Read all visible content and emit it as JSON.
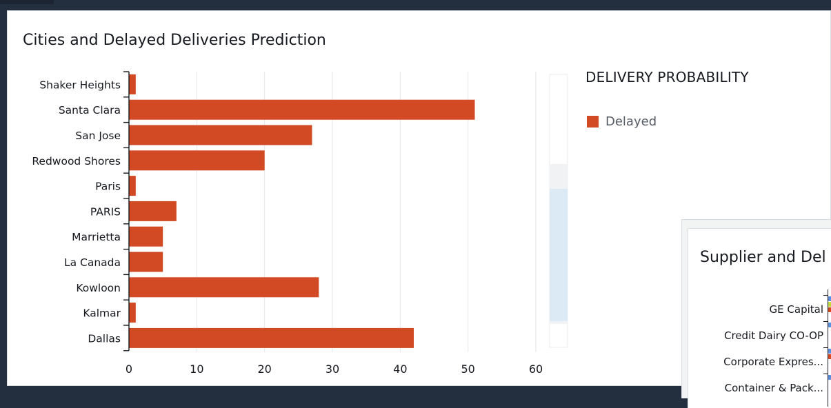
{
  "panel": {
    "title": "Cities and Delayed Deliveries Prediction"
  },
  "legend": {
    "title": "DELIVERY PROBABILITY",
    "items": [
      {
        "label": "Delayed",
        "color": "#d14a24"
      }
    ]
  },
  "chart_data": {
    "type": "bar",
    "orientation": "horizontal",
    "title": "Cities and Delayed Deliveries Prediction",
    "categories": [
      "Shaker Heights",
      "Santa Clara",
      "San Jose",
      "Redwood Shores",
      "Paris",
      "PARIS",
      "Marrietta",
      "La Canada",
      "Kowloon",
      "Kalmar",
      "Dallas"
    ],
    "series": [
      {
        "name": "Delayed",
        "color": "#d14a24",
        "values": [
          1,
          51,
          27,
          20,
          1,
          7,
          5,
          5,
          28,
          1,
          42
        ]
      }
    ],
    "xticks": [
      0,
      10,
      20,
      30,
      40,
      50,
      60
    ],
    "xlim": [
      0,
      60
    ],
    "grid": true,
    "legend_position": "right"
  },
  "panel2": {
    "title": "Supplier and Del",
    "suppliers": [
      {
        "label": "GE Capital",
        "bars": [
          {
            "color": "#5b8fd9"
          },
          {
            "color": "#c4d93a"
          },
          {
            "color": "#d14a24"
          }
        ]
      },
      {
        "label": "Credit Dairy CO-OP",
        "bars": [
          {
            "color": "#5b8fd9"
          }
        ]
      },
      {
        "label": "Corporate Expres...",
        "bars": [
          {
            "color": "#5b8fd9"
          },
          {
            "color": "#d14a24"
          }
        ]
      },
      {
        "label": "Container & Pack...",
        "bars": [
          {
            "color": "#5b8fd9"
          }
        ]
      }
    ]
  }
}
